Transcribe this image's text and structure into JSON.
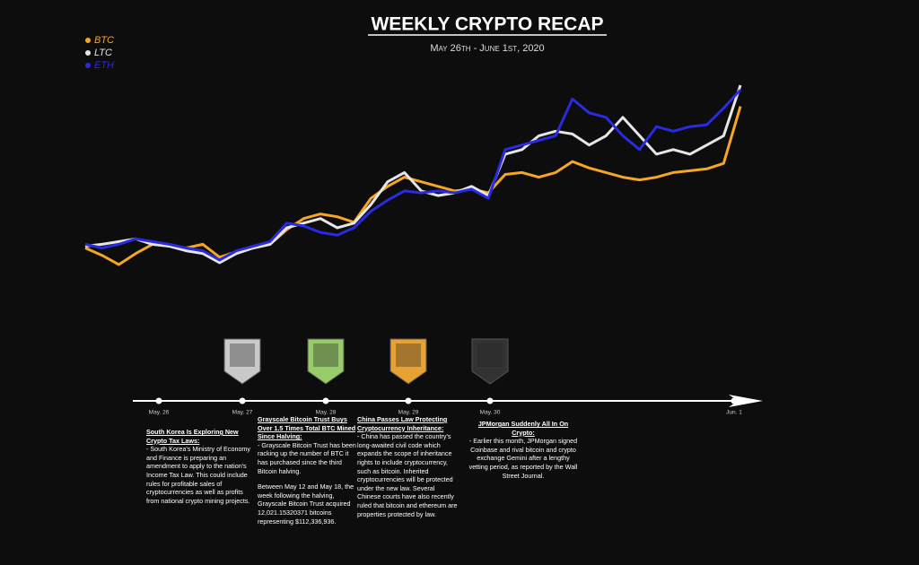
{
  "chart_data": {
    "type": "line",
    "title": "WEEKLY CRYPTO RECAP",
    "subtitle": "May 26th - June 1st, 2020",
    "series": [
      {
        "name": "BTC",
        "color": "#f5a623",
        "values": [
          28,
          20,
          10,
          22,
          32,
          30,
          28,
          32,
          18,
          24,
          28,
          32,
          48,
          60,
          65,
          62,
          56,
          82,
          95,
          105,
          100,
          95,
          90,
          92,
          88,
          108,
          110,
          105,
          110,
          122,
          115,
          110,
          105,
          102,
          105,
          110,
          112,
          114,
          120,
          182
        ]
      },
      {
        "name": "LTC",
        "color": "#e6e6e6",
        "values": [
          30,
          32,
          35,
          38,
          32,
          30,
          25,
          22,
          12,
          22,
          28,
          32,
          50,
          55,
          60,
          50,
          55,
          75,
          100,
          110,
          90,
          85,
          88,
          95,
          85,
          130,
          135,
          150,
          155,
          152,
          140,
          150,
          170,
          150,
          130,
          135,
          130,
          140,
          150,
          205
        ]
      },
      {
        "name": "ETH",
        "color": "#2a2ae0",
        "values": [
          32,
          28,
          32,
          38,
          35,
          32,
          28,
          25,
          15,
          25,
          30,
          35,
          55,
          52,
          45,
          42,
          50,
          68,
          80,
          90,
          88,
          90,
          88,
          92,
          82,
          135,
          140,
          145,
          150,
          190,
          175,
          170,
          150,
          135,
          160,
          155,
          160,
          162,
          180,
          200
        ]
      }
    ]
  },
  "timeline": {
    "labels": [
      "May. 26",
      "May. 27",
      "May. 28",
      "May. 29",
      "May. 30",
      "Jun. 1"
    ],
    "notes": [
      {
        "title": "South Korea Is Exploring New Crypto Tax Laws:",
        "body": [
          "- South Korea's Ministry of Economy and Finance is preparing an amendment to apply to the nation's Income Tax Law. This could include rules for profitable sales of cryptocurrencies as well as profits from national crypto mining projects."
        ]
      },
      {
        "title": "Grayscale Bitcoin Trust Buys Over 1.5 Times Total BTC Mined Since Halving:",
        "body": [
          "- Grayscale Bitcoin Trust has been racking up the number of BTC it has purchased since the third Bitcoin halving.",
          "Between May 12 and May 18, the week following the halving, Grayscale Bitcoin Trust acquired 12,021.15320371 bitcoins representing $112,336,936."
        ]
      },
      {
        "title": "China Passes Law Protecting Cryptocurrency Inheritance:",
        "body": [
          "- China has passed the country's long-awaited civil code which expands the scope of inheritance rights to include cryptocurrency, such as bitcoin. Inherited cryptocurrencies will be protected under the new law. Several Chinese courts have also recently ruled that bitcoin and ethereum are properties protected by law."
        ]
      },
      {
        "title": "JPMorgan Suddenly All In On Crypto:",
        "body": [
          "- Earlier this month, JPMorgan signed Coinbase and rival bitcoin and crypto exchange Gemini after a lengthy vetting period, as reported by the Wall Street Journal."
        ]
      }
    ]
  }
}
